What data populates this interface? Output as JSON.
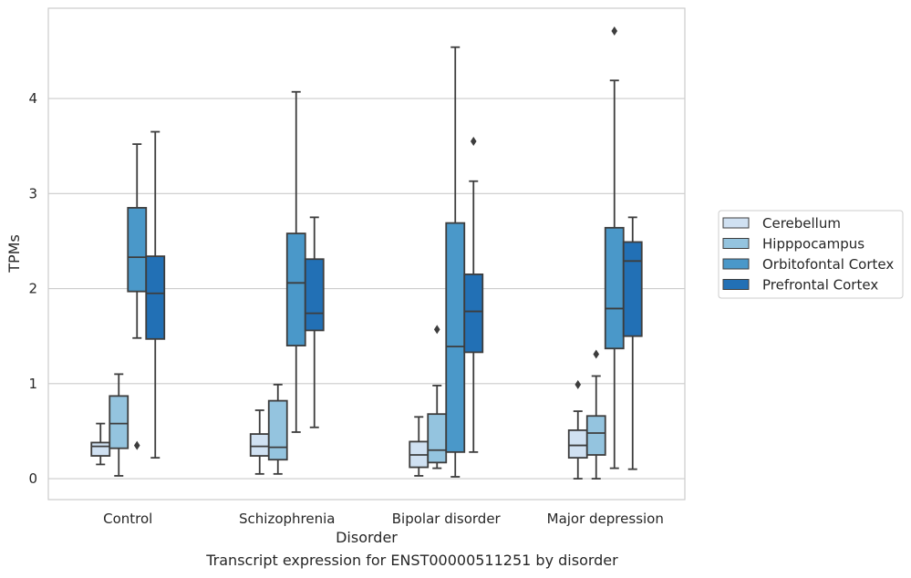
{
  "chart_data": {
    "type": "box",
    "title": "",
    "caption": "Transcript expression for ENST00000511251 by disorder",
    "xlabel": "Disorder",
    "ylabel": "TPMs",
    "ylim": [
      -0.22,
      4.95
    ],
    "yticks": [
      0,
      1,
      2,
      3,
      4
    ],
    "grid": true,
    "legend_position": "right",
    "categories": [
      "Control",
      "Schizophrenia",
      "Bipolar disorder",
      "Major depression"
    ],
    "series": [
      {
        "name": "Cerebellum",
        "color": "#d0e1f2",
        "boxes": [
          {
            "whisker_low": 0.15,
            "q1": 0.24,
            "median": 0.34,
            "q3": 0.38,
            "whisker_high": 0.58,
            "outliers": []
          },
          {
            "whisker_low": 0.05,
            "q1": 0.24,
            "median": 0.34,
            "q3": 0.47,
            "whisker_high": 0.72,
            "outliers": []
          },
          {
            "whisker_low": 0.03,
            "q1": 0.12,
            "median": 0.25,
            "q3": 0.39,
            "whisker_high": 0.65,
            "outliers": []
          },
          {
            "whisker_low": 0.0,
            "q1": 0.22,
            "median": 0.35,
            "q3": 0.51,
            "whisker_high": 0.71,
            "outliers": [
              0.99
            ]
          }
        ]
      },
      {
        "name": "Hipppocampus",
        "color": "#94c4df",
        "boxes": [
          {
            "whisker_low": 0.03,
            "q1": 0.32,
            "median": 0.58,
            "q3": 0.87,
            "whisker_high": 1.1,
            "outliers": []
          },
          {
            "whisker_low": 0.05,
            "q1": 0.2,
            "median": 0.33,
            "q3": 0.82,
            "whisker_high": 0.99,
            "outliers": []
          },
          {
            "whisker_low": 0.11,
            "q1": 0.17,
            "median": 0.3,
            "q3": 0.68,
            "whisker_high": 0.98,
            "outliers": [
              1.57
            ]
          },
          {
            "whisker_low": 0.0,
            "q1": 0.25,
            "median": 0.48,
            "q3": 0.66,
            "whisker_high": 1.08,
            "outliers": [
              1.31
            ]
          }
        ]
      },
      {
        "name": "Orbitofontal Cortex",
        "color": "#4a98c9",
        "boxes": [
          {
            "whisker_low": 1.48,
            "q1": 1.97,
            "median": 2.33,
            "q3": 2.85,
            "whisker_high": 3.52,
            "outliers": [
              0.35
            ]
          },
          {
            "whisker_low": 0.49,
            "q1": 1.4,
            "median": 2.06,
            "q3": 2.58,
            "whisker_high": 4.07,
            "outliers": []
          },
          {
            "whisker_low": 0.02,
            "q1": 0.28,
            "median": 1.39,
            "q3": 2.69,
            "whisker_high": 4.54,
            "outliers": []
          },
          {
            "whisker_low": 0.11,
            "q1": 1.37,
            "median": 1.79,
            "q3": 2.64,
            "whisker_high": 4.19,
            "outliers": [
              4.71
            ]
          }
        ]
      },
      {
        "name": "Prefrontal Cortex",
        "color": "#2270b5",
        "boxes": [
          {
            "whisker_low": 0.22,
            "q1": 1.47,
            "median": 1.95,
            "q3": 2.34,
            "whisker_high": 3.65,
            "outliers": []
          },
          {
            "whisker_low": 0.54,
            "q1": 1.56,
            "median": 1.74,
            "q3": 2.31,
            "whisker_high": 2.75,
            "outliers": []
          },
          {
            "whisker_low": 0.28,
            "q1": 1.33,
            "median": 1.76,
            "q3": 2.15,
            "whisker_high": 3.13,
            "outliers": [
              3.55
            ]
          },
          {
            "whisker_low": 0.1,
            "q1": 1.5,
            "median": 2.29,
            "q3": 2.49,
            "whisker_high": 2.75,
            "outliers": []
          }
        ]
      }
    ]
  }
}
